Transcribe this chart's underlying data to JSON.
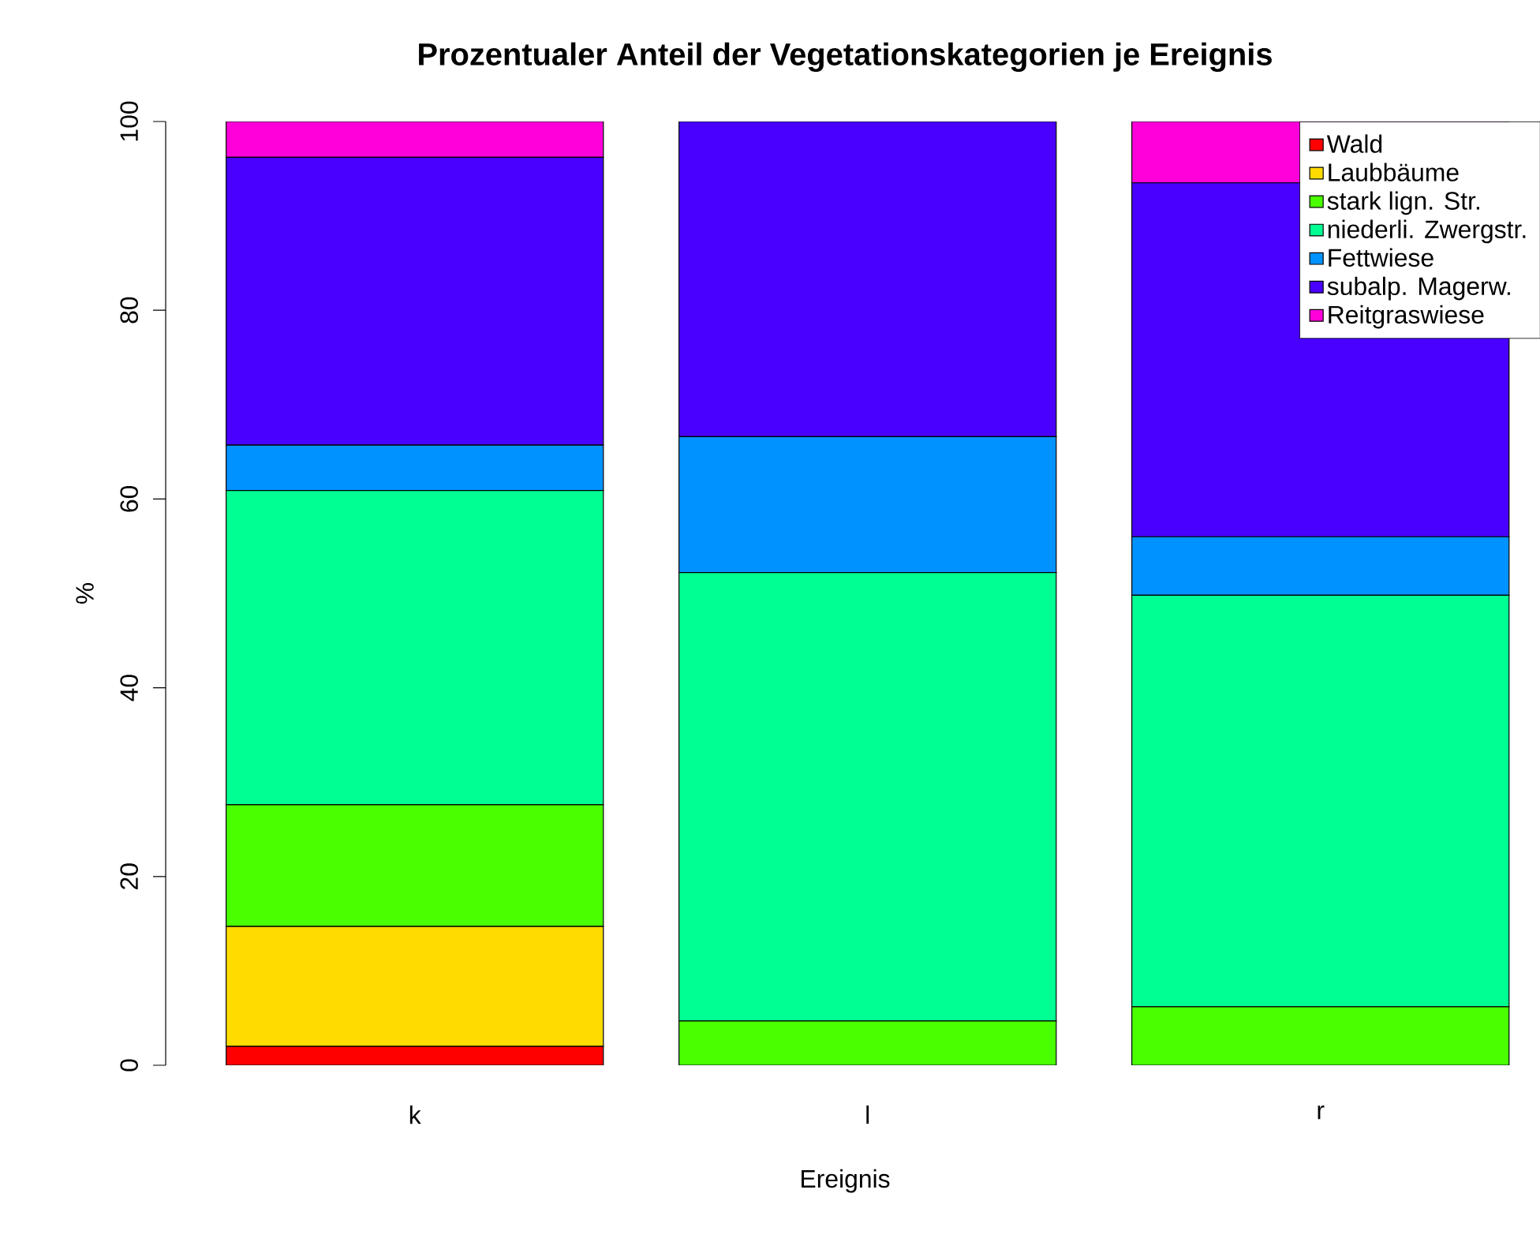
{
  "chart_data": {
    "type": "bar",
    "title": "Prozentualer Anteil der Vegetationskategorien je Ereignis",
    "xlabel": "Ereignis",
    "ylabel": "%",
    "categories": [
      "k",
      "l",
      "r"
    ],
    "stacked": true,
    "ylim": [
      0,
      100
    ],
    "yticks": [
      0,
      20,
      40,
      60,
      80,
      100
    ],
    "legend": "top right",
    "series": [
      {
        "name": "Wald",
        "color": "#ff0000",
        "values": [
          2.0,
          0,
          0
        ]
      },
      {
        "name": "Laubbäume",
        "color": "#ffdb00",
        "values": [
          12.7,
          0,
          0
        ]
      },
      {
        "name": "stark lign. Str.",
        "color": "#49ff00",
        "values": [
          12.9,
          4.7,
          6.2
        ]
      },
      {
        "name": "niederli. Zwergstr.",
        "color": "#00ff92",
        "values": [
          33.3,
          47.5,
          43.6
        ]
      },
      {
        "name": "Fettwiese",
        "color": "#0092ff",
        "values": [
          4.8,
          14.4,
          6.2
        ]
      },
      {
        "name": "subalp. Magerw.",
        "color": "#4900ff",
        "values": [
          30.5,
          33.4,
          37.5
        ]
      },
      {
        "name": "Reitgraswiese",
        "color": "#ff00db",
        "values": [
          3.8,
          0,
          6.5
        ]
      }
    ]
  }
}
